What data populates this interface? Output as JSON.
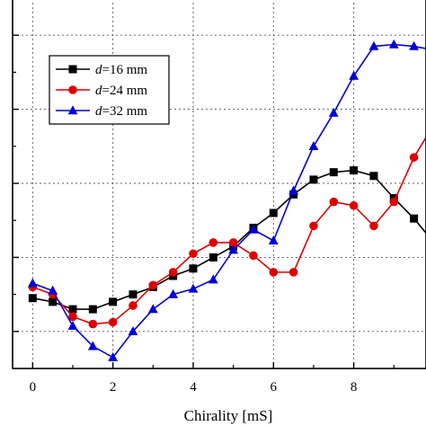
{
  "chart_data": {
    "type": "line",
    "xlabel": "Chirality [mS]",
    "ylabel": "",
    "xlim": [
      -0.5,
      9.8
    ],
    "ylim": [
      0,
      100
    ],
    "grid": true,
    "grid_style": "dotted",
    "legend_position": "top-left",
    "x_ticks": [
      0,
      2,
      4,
      6,
      8
    ],
    "x_tick_labels": [
      "0",
      "2",
      "4",
      "6",
      "8"
    ],
    "x_minor_ticks": [
      1,
      3,
      5,
      7,
      9
    ],
    "y_ticks": [
      10,
      30,
      50,
      70,
      90
    ],
    "y_tick_labels": [
      "",
      "",
      "",
      "",
      ""
    ],
    "x": [
      0,
      0.5,
      1,
      1.5,
      2,
      2.5,
      3,
      3.5,
      4,
      4.5,
      5,
      5.5,
      6,
      6.5,
      7,
      7.5,
      8,
      8.5,
      9,
      9.5,
      10
    ],
    "series": [
      {
        "name": "d=16 mm",
        "name_italic": "d",
        "name_rest": "=16 mm",
        "color": "#000000",
        "marker": "square",
        "values": [
          19,
          18,
          16,
          16,
          18,
          20,
          22,
          25,
          27,
          30,
          33,
          38,
          42,
          47,
          51,
          53,
          53.5,
          52,
          46,
          40.5,
          34
        ]
      },
      {
        "name": "d=24 mm",
        "name_italic": "d",
        "name_rest": "=24 mm",
        "color": "#e00000",
        "marker": "circle",
        "values": [
          22,
          20,
          14,
          12,
          12.5,
          17,
          22.5,
          26,
          31,
          34,
          34,
          30.5,
          26,
          26,
          38.5,
          45,
          44,
          38.5,
          45,
          57,
          66
        ]
      },
      {
        "name": "d=32 mm",
        "name_italic": "d",
        "name_rest": "=32 mm",
        "color": "#0000d8",
        "marker": "triangle",
        "values": [
          23,
          21,
          11.5,
          6,
          3,
          10,
          16,
          20,
          21.5,
          24,
          32,
          37.5,
          34.5,
          48,
          60,
          69,
          79,
          87,
          87.5,
          87,
          86
        ]
      }
    ]
  }
}
